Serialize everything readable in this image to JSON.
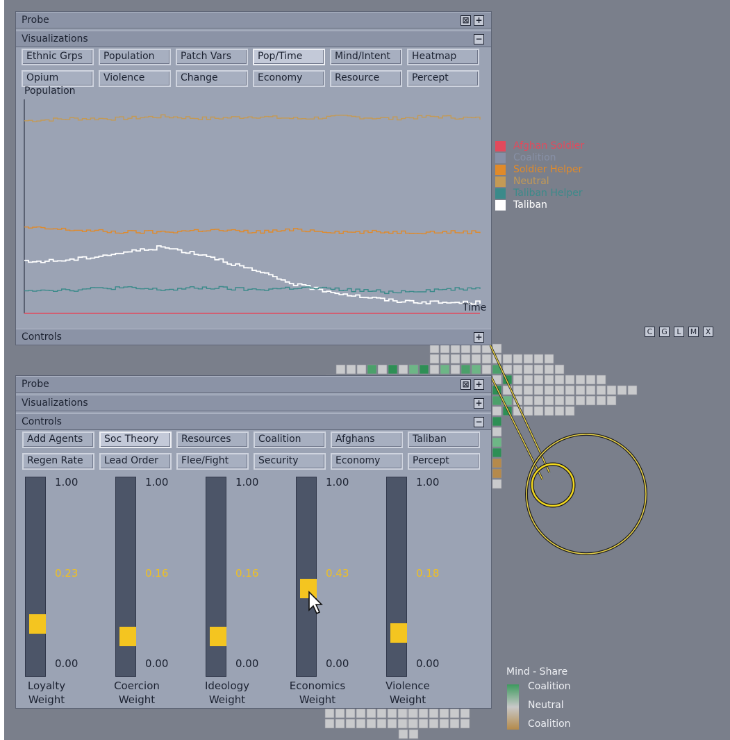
{
  "probe_top": {
    "title": "Probe",
    "close_symbol": "⊠",
    "expand_symbol": "+",
    "visualizations": {
      "title": "Visualizations",
      "collapse_symbol": "−",
      "buttons_row1": [
        "Ethnic Grps",
        "Population",
        "Patch Vars",
        "Pop/Time",
        "Mind/Intent",
        "Heatmap"
      ],
      "buttons_row2": [
        "Opium",
        "Violence",
        "Change",
        "Economy",
        "Resource",
        "Percept"
      ],
      "selected": "Pop/Time"
    },
    "chart_title": "Population",
    "x_label": "Time",
    "controls": {
      "title": "Controls",
      "expand_symbol": "+"
    }
  },
  "legend": [
    {
      "label": "Afghan Soldier",
      "color": "#e24a5c"
    },
    {
      "label": "Coalition",
      "color": "#8790a6"
    },
    {
      "label": "Soldier Helper",
      "color": "#e08a2a"
    },
    {
      "label": "Neutral",
      "color": "#c49a55"
    },
    {
      "label": "Taliban Helper",
      "color": "#3b8a8a"
    },
    {
      "label": "Taliban",
      "color": "#ffffff"
    }
  ],
  "chart_data": {
    "type": "line",
    "title": "Population",
    "xlabel": "Time",
    "ylabel": "",
    "ylim": [
      0,
      100
    ],
    "x": [
      0,
      10,
      20,
      30,
      40,
      50,
      60,
      70,
      80,
      90,
      100
    ],
    "series": [
      {
        "name": "Neutral",
        "color": "#c49a55",
        "values": [
          90,
          91,
          91,
          92,
          91,
          92,
          91,
          92,
          91,
          92,
          91
        ]
      },
      {
        "name": "Soldier Helper",
        "color": "#e08a2a",
        "values": [
          40,
          39,
          38,
          38,
          39,
          38,
          39,
          38,
          38,
          38,
          38
        ]
      },
      {
        "name": "Taliban",
        "color": "#ffffff",
        "values": [
          24,
          25,
          28,
          31,
          27,
          20,
          13,
          9,
          6,
          5,
          5
        ]
      },
      {
        "name": "Taliban Helper",
        "color": "#3b8a8a",
        "values": [
          11,
          11,
          12,
          11,
          12,
          11,
          12,
          11,
          10,
          11,
          12
        ]
      },
      {
        "name": "Afghan Soldier",
        "color": "#e24a5c",
        "values": [
          0,
          0,
          0,
          0,
          0,
          0,
          0,
          0,
          0,
          0,
          0
        ]
      }
    ]
  },
  "probe_bottom": {
    "title": "Probe",
    "close_symbol": "⊠",
    "expand_symbol": "+",
    "visualizations": {
      "title": "Visualizations",
      "expand_symbol": "+"
    },
    "controls": {
      "title": "Controls",
      "collapse_symbol": "−",
      "buttons_row1": [
        "Add Agents",
        "Soc Theory",
        "Resources",
        "Coalition",
        "Afghans",
        "Taliban"
      ],
      "buttons_row2": [
        "Regen Rate",
        "Lead Order",
        "Flee/Fight",
        "Security",
        "Economy",
        "Percept"
      ],
      "selected": "Soc Theory"
    },
    "sliders": [
      {
        "name": "Loyalty\nWeight",
        "value_label": "0.23",
        "value": 0.23,
        "max_label": "1.00",
        "min_label": "0.00"
      },
      {
        "name": "Coercion\nWeight",
        "value_label": "0.16",
        "value": 0.16,
        "max_label": "1.00",
        "min_label": "0.00"
      },
      {
        "name": "Ideology\nWeight",
        "value_label": "0.16",
        "value": 0.16,
        "max_label": "1.00",
        "min_label": "0.00"
      },
      {
        "name": "Economics\nWeight",
        "value_label": "0.43",
        "value": 0.43,
        "max_label": "1.00",
        "min_label": "0.00"
      },
      {
        "name": "Violence\nWeight",
        "value_label": "0.18",
        "value": 0.18,
        "max_label": "1.00",
        "min_label": "0.00"
      }
    ]
  },
  "map_controls": [
    "C",
    "G",
    "L",
    "M",
    "X"
  ],
  "mind_share": {
    "title": "Mind - Share",
    "items": [
      {
        "label": "Coalition",
        "color": "#3d9a5e"
      },
      {
        "label": "Neutral",
        "color": "#c8c8c8"
      },
      {
        "label": "Coalition",
        "color": "#b48a4a"
      }
    ]
  }
}
